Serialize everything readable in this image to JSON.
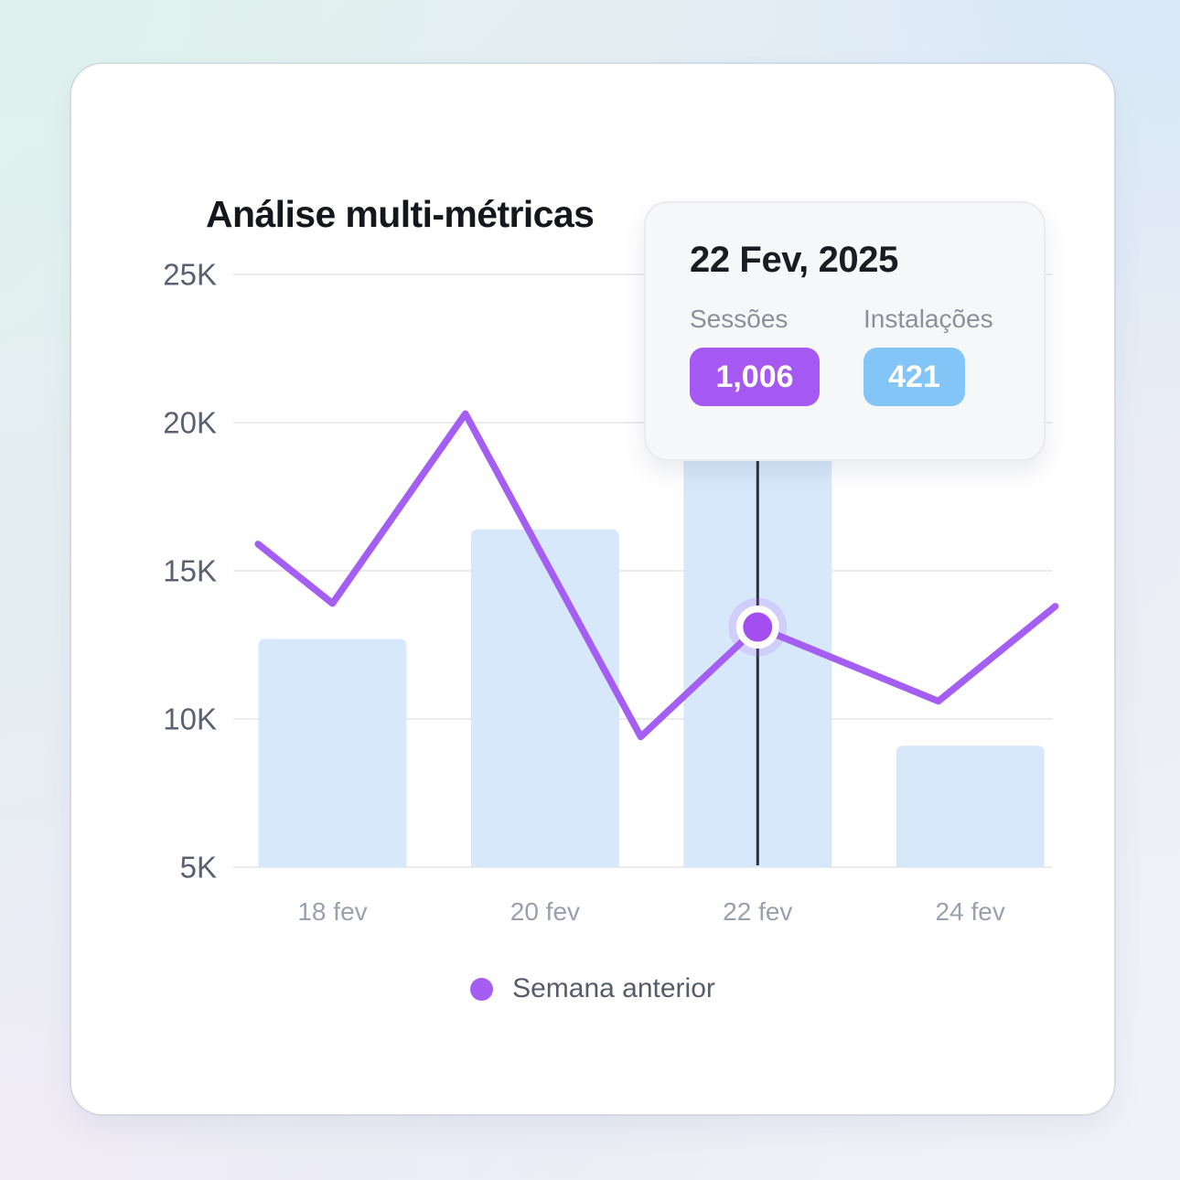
{
  "card": {
    "title": "Análise multi-métricas"
  },
  "tooltip": {
    "date": "22 Fev, 2025",
    "metrics": [
      {
        "label": "Sessões",
        "value": "1,006",
        "color": "#a658f2"
      },
      {
        "label": "Instalações",
        "value": "421",
        "color": "#84c5f8"
      }
    ]
  },
  "legend": {
    "label": "Semana anterior",
    "color": "#a55ef2"
  },
  "colors": {
    "bar_fill": "#d8e8fb",
    "line_stroke": "#a55ef2",
    "active_dot": "#a44ef0",
    "crosshair": "#2c2f3a",
    "gridline": "#ececee"
  },
  "chart_data": {
    "type": "bar+line",
    "title": "Análise multi-métricas",
    "grid": true,
    "legend_position": "bottom-center",
    "y_axis": {
      "min": 5000,
      "max": 25000,
      "tick_values": [
        25000,
        20000,
        15000,
        10000,
        5000
      ],
      "tick_labels": [
        "25K",
        "20K",
        "15K",
        "10K",
        "5K"
      ]
    },
    "x_axis": {
      "tick_days": [
        18,
        20,
        22,
        24
      ],
      "tick_labels": [
        "18 fev",
        "20 fev",
        "22 fev",
        "24 fev"
      ]
    },
    "bars": {
      "categories": [
        "18 fev",
        "20 fev",
        "22 fev",
        "24 fev"
      ],
      "days": [
        18,
        20,
        22,
        24
      ],
      "values": [
        12700,
        16400,
        19100,
        9100
      ]
    },
    "line": {
      "name": "Semana anterior",
      "points": [
        [
          17.3,
          15900
        ],
        [
          18.0,
          13900
        ],
        [
          19.25,
          20300
        ],
        [
          20.9,
          9400
        ],
        [
          22.0,
          13100
        ],
        [
          23.7,
          10600
        ],
        [
          24.8,
          13800
        ]
      ]
    },
    "active_point": {
      "day": 22,
      "value": 13100,
      "x_label": "22 fev"
    }
  }
}
